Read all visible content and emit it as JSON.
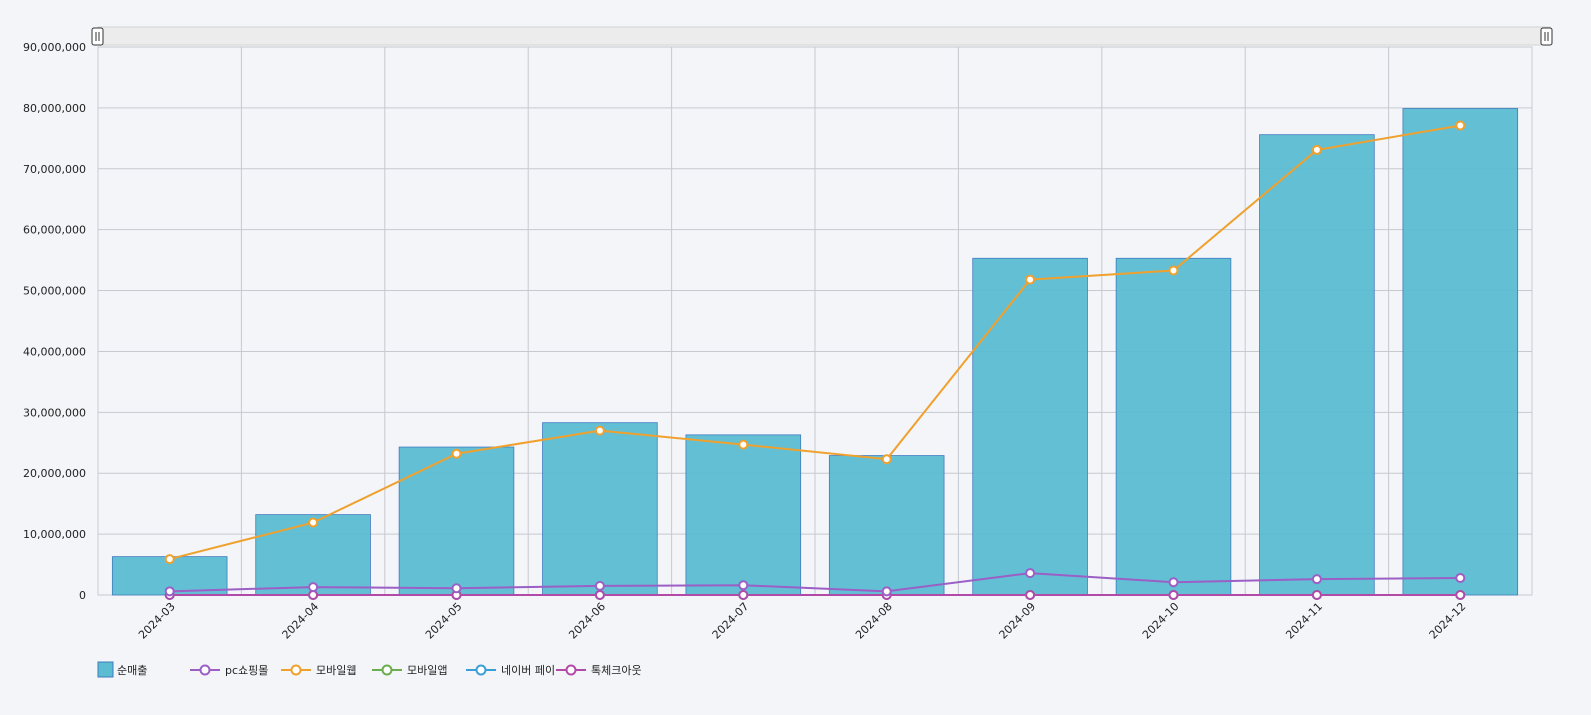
{
  "chart_data": {
    "type": "bar",
    "title": "",
    "xlabel": "",
    "ylabel": "",
    "ylim": [
      0,
      90000000
    ],
    "y_ticks": [
      0,
      10000000,
      20000000,
      30000000,
      40000000,
      50000000,
      60000000,
      70000000,
      80000000,
      90000000
    ],
    "grid": true,
    "legend_position": "bottom-left",
    "categories": [
      "2024-03",
      "2024-04",
      "2024-05",
      "2024-06",
      "2024-07",
      "2024-08",
      "2024-09",
      "2024-10",
      "2024-11",
      "2024-12"
    ],
    "bar_series": {
      "name": "순매출",
      "color": "#5bbcd2",
      "values": [
        6300000,
        13200000,
        24300000,
        28300000,
        26300000,
        22900000,
        55300000,
        55300000,
        75600000,
        79900000
      ]
    },
    "line_series": [
      {
        "name": "pc쇼핑몰",
        "color": "#9b5fc6",
        "values": [
          600000,
          1300000,
          1100000,
          1500000,
          1600000,
          600000,
          3600000,
          2100000,
          2600000,
          2800000
        ]
      },
      {
        "name": "모바일웹",
        "color": "#f0a12d",
        "values": [
          5900000,
          11900000,
          23200000,
          27000000,
          24700000,
          22300000,
          51800000,
          53300000,
          73100000,
          77100000
        ]
      },
      {
        "name": "모바일앱",
        "color": "#6aac4e",
        "values": [
          0,
          0,
          0,
          0,
          0,
          0,
          0,
          0,
          0,
          0
        ]
      },
      {
        "name": "네이버 페이",
        "color": "#3a9fd6",
        "values": [
          0,
          0,
          0,
          0,
          0,
          0,
          0,
          0,
          0,
          0
        ]
      },
      {
        "name": "톡체크아웃",
        "color": "#b24aa8",
        "values": [
          0,
          0,
          0,
          0,
          0,
          0,
          0,
          0,
          0,
          0
        ]
      }
    ]
  }
}
